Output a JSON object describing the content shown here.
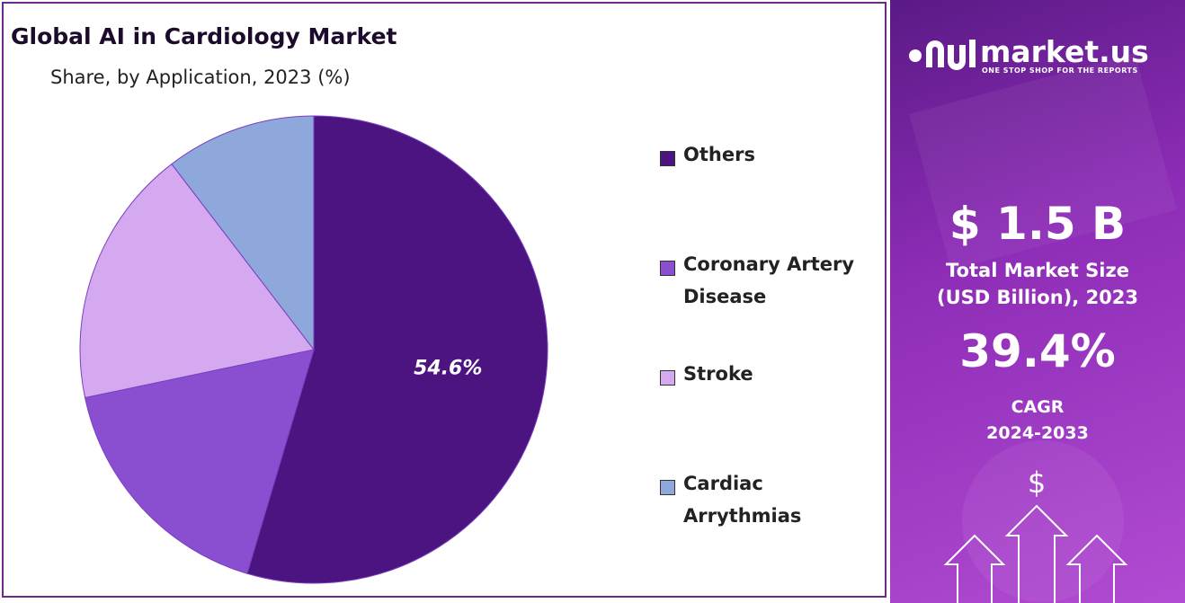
{
  "chart_data": {
    "type": "pie",
    "title": "Global AI in Cardiology Market",
    "subtitle": "Share, by Application, 2023 (%)",
    "categories": [
      "Others",
      "Coronary Artery Disease",
      "Stroke",
      "Cardiac Arrythmias"
    ],
    "values": [
      54.6,
      17.1,
      17.9,
      10.4
    ],
    "value_labels": [
      "54.6%",
      null,
      null,
      null
    ],
    "colors": [
      "#4b1480",
      "#8a4fd0",
      "#d4a9ef",
      "#8fa8dc"
    ]
  },
  "sidebar": {
    "brand": "market.us",
    "tagline": "ONE STOP SHOP FOR THE REPORTS",
    "market_size": "$ 1.5 B",
    "market_size_caption": [
      "Total Market Size",
      "(USD Billion), 2023"
    ],
    "cagr": "39.4%",
    "cagr_caption": [
      "CAGR",
      "2024-2033"
    ]
  }
}
